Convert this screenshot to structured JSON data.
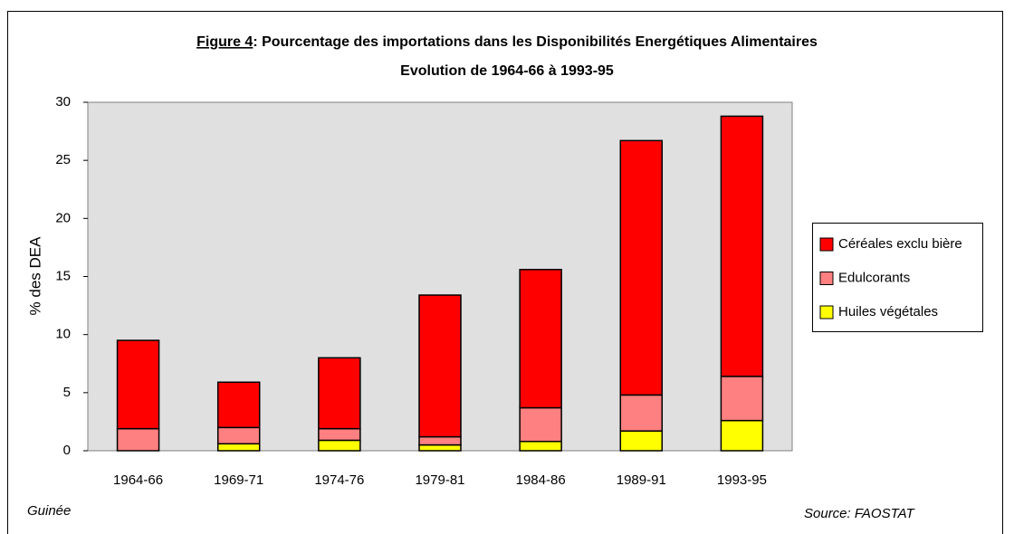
{
  "chart_data": {
    "type": "stacked_bar",
    "title": "Figure 4: Pourcentage des importations dans les Disponibilités Energétiques Alimentaires",
    "subtitle": "Evolution de 1964-66 à 1993-95",
    "y_label": "% des DEA",
    "categories": [
      "1964-66",
      "1969-71",
      "1974-76",
      "1979-81",
      "1984-86",
      "1989-91",
      "1993-95"
    ],
    "series": [
      {
        "name": "Céréales exclu bière",
        "color": "#ff0000",
        "values": [
          7.6,
          3.9,
          6.1,
          12.2,
          11.9,
          21.9,
          22.4
        ]
      },
      {
        "name": "Edulcorants",
        "color": "#ff8080",
        "values": [
          1.9,
          1.4,
          1.0,
          0.7,
          2.9,
          3.1,
          3.8
        ]
      },
      {
        "name": "Huiles végétales",
        "color": "#ffff00",
        "values": [
          0,
          0.6,
          0.9,
          0.5,
          0.8,
          1.7,
          2.6
        ]
      }
    ],
    "ylim": [
      0,
      30
    ],
    "yticks": [
      0,
      5,
      10,
      15,
      20,
      25,
      30
    ],
    "grid": false,
    "legend": "right",
    "note_left": "Guinée",
    "source": "Source: FAOSTAT"
  }
}
